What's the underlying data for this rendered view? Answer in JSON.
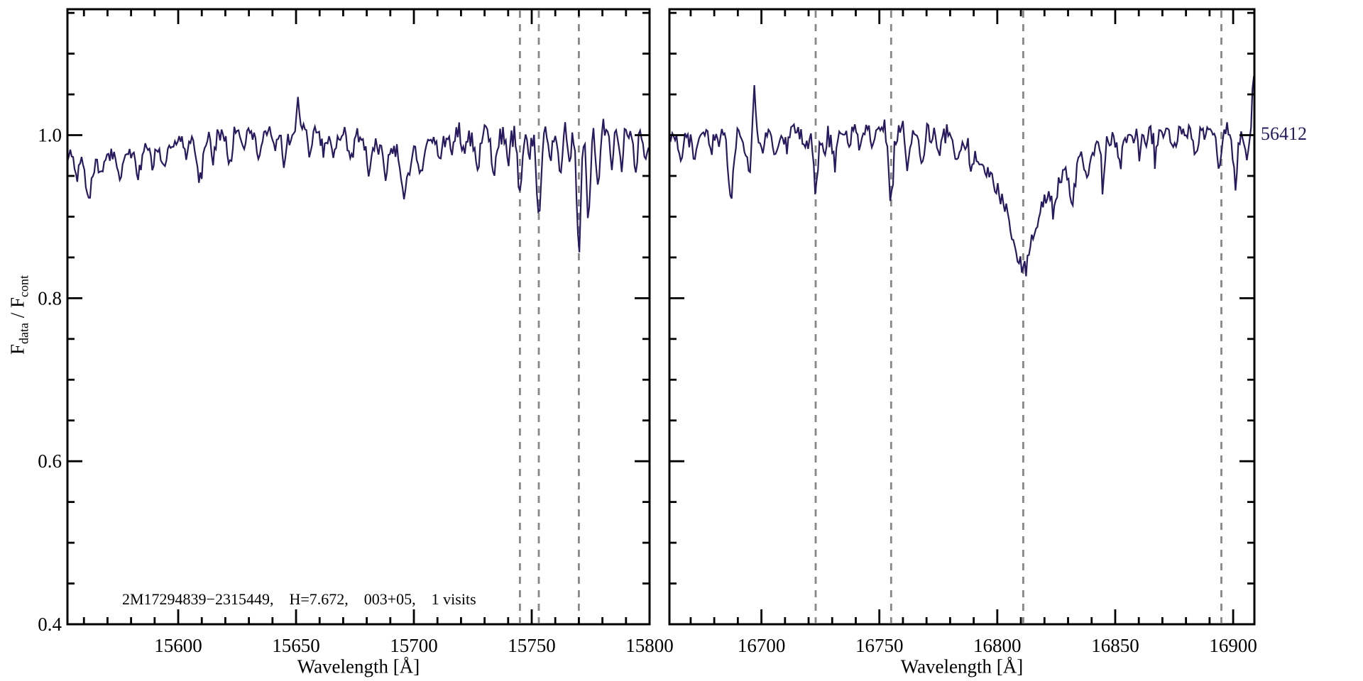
{
  "figure": {
    "background": "#ffffff",
    "line_color": "#281a5e",
    "axis_color": "#000000",
    "dashed_line_color": "#878787",
    "annotation": "2M17294839−2315449,    H=7.672,    003+05,    1 visits",
    "epoch_label": "56412",
    "ylabel": {
      "f1": "F",
      "s1": "data",
      "f2": " / F",
      "s2": "cont"
    }
  },
  "chart_data": [
    {
      "type": "line",
      "name": "left-panel",
      "xlabel": "Wavelength [Å]",
      "ylabel": "Fdata / Fcont",
      "xlim": [
        15553,
        15800
      ],
      "ylim": [
        0.4,
        1.1545
      ],
      "xticks": [
        15600,
        15650,
        15700,
        15750,
        15800
      ],
      "yticks": [
        0.4,
        0.6,
        0.8,
        1.0
      ],
      "ytick_labels": [
        "0.4",
        "0.6",
        "0.8",
        "1.0"
      ],
      "x_minor_step": 10,
      "y_minor_step": 0.05,
      "grid": false,
      "dashed_vlines": [
        15745,
        15753,
        15770
      ],
      "continuum": [
        [
          15553,
          0.972
        ],
        [
          15558,
          0.968
        ],
        [
          15565,
          0.97
        ],
        [
          15572,
          0.973
        ],
        [
          15580,
          0.978
        ],
        [
          15590,
          0.985
        ],
        [
          15600,
          0.992
        ],
        [
          15612,
          1.0
        ],
        [
          15625,
          1.004
        ],
        [
          15640,
          1.005
        ],
        [
          15655,
          1.006
        ],
        [
          15668,
          1.002
        ],
        [
          15678,
          0.995
        ],
        [
          15690,
          0.985
        ],
        [
          15700,
          0.986
        ],
        [
          15710,
          0.995
        ],
        [
          15720,
          1.002
        ],
        [
          15735,
          1.005
        ],
        [
          15760,
          1.006
        ],
        [
          15800,
          1.005
        ]
      ],
      "absorption_lines": [
        [
          15557,
          0.018,
          0.8
        ],
        [
          15562,
          0.05,
          1.1
        ],
        [
          15567,
          0.02,
          0.8
        ],
        [
          15575,
          0.028,
          0.9
        ],
        [
          15583,
          0.038,
          1.0
        ],
        [
          15589,
          0.022,
          0.8
        ],
        [
          15594,
          0.03,
          0.9
        ],
        [
          15603,
          0.022,
          0.8
        ],
        [
          15609,
          0.055,
          1.2
        ],
        [
          15615,
          0.022,
          0.8
        ],
        [
          15622,
          0.037,
          1.0
        ],
        [
          15628,
          0.022,
          0.8
        ],
        [
          15634,
          0.032,
          0.9
        ],
        [
          15641,
          0.02,
          0.8
        ],
        [
          15645,
          0.035,
          0.9
        ],
        [
          15656,
          0.028,
          0.9
        ],
        [
          15662,
          0.022,
          0.8
        ],
        [
          15666,
          0.03,
          0.9
        ],
        [
          15673,
          0.026,
          0.9
        ],
        [
          15681,
          0.032,
          1.0
        ],
        [
          15688,
          0.04,
          1.1
        ],
        [
          15696,
          0.055,
          1.5
        ],
        [
          15703,
          0.038,
          1.2
        ],
        [
          15711,
          0.022,
          0.8
        ],
        [
          15716,
          0.02,
          0.7
        ],
        [
          15721,
          0.028,
          0.8
        ],
        [
          15727,
          0.05,
          0.9
        ],
        [
          15734,
          0.058,
          0.9
        ],
        [
          15740,
          0.035,
          0.7
        ],
        [
          15745,
          0.08,
          0.9
        ],
        [
          15749,
          0.035,
          0.7
        ],
        [
          15753,
          0.105,
          1.0
        ],
        [
          15758,
          0.045,
          0.8
        ],
        [
          15762,
          0.05,
          0.8
        ],
        [
          15766,
          0.045,
          0.7
        ],
        [
          15770,
          0.15,
          0.9
        ],
        [
          15774,
          0.1,
          0.8
        ],
        [
          15778,
          0.07,
          0.8
        ],
        [
          15784,
          0.045,
          0.8
        ],
        [
          15788,
          0.05,
          0.8
        ],
        [
          15794,
          0.045,
          0.8
        ],
        [
          15798,
          0.04,
          0.7
        ]
      ],
      "emission_lines": [
        [
          15651,
          0.035,
          0.7
        ]
      ],
      "noise_sigma": 0.006,
      "sample_step": 0.6
    },
    {
      "type": "line",
      "name": "right-panel",
      "xlabel": "Wavelength [Å]",
      "ylabel": "Fdata / Fcont",
      "xlim": [
        16661,
        16909
      ],
      "ylim": [
        0.4,
        1.1545
      ],
      "xticks": [
        16700,
        16750,
        16800,
        16850,
        16900
      ],
      "yticks": [
        0.4,
        0.6,
        0.8,
        1.0
      ],
      "ytick_labels": [],
      "x_minor_step": 10,
      "y_minor_step": 0.05,
      "grid": false,
      "dashed_vlines": [
        16723,
        16755,
        16811,
        16895
      ],
      "continuum": [
        [
          16661,
          0.998
        ],
        [
          16680,
          1.002
        ],
        [
          16700,
          1.003
        ],
        [
          16720,
          1.004
        ],
        [
          16740,
          1.008
        ],
        [
          16760,
          1.005
        ],
        [
          16780,
          1.006
        ],
        [
          16800,
          1.002
        ],
        [
          16811,
          1.0
        ],
        [
          16825,
          0.995
        ],
        [
          16840,
          0.99
        ],
        [
          16855,
          0.998
        ],
        [
          16870,
          1.002
        ],
        [
          16890,
          1.005
        ],
        [
          16909,
          1.005
        ]
      ],
      "absorption_lines": [
        [
          16666,
          0.03,
          0.9
        ],
        [
          16672,
          0.026,
          0.9
        ],
        [
          16679,
          0.02,
          0.8
        ],
        [
          16687,
          0.08,
          1.1
        ],
        [
          16693,
          0.03,
          0.8
        ],
        [
          16695,
          0.05,
          0.6
        ],
        [
          16700,
          0.02,
          0.8
        ],
        [
          16706,
          0.036,
          1.0
        ],
        [
          16711,
          0.02,
          0.8
        ],
        [
          16719,
          0.022,
          0.8
        ],
        [
          16723,
          0.075,
          0.9
        ],
        [
          16727,
          0.03,
          0.8
        ],
        [
          16731,
          0.04,
          0.9
        ],
        [
          16737,
          0.02,
          0.8
        ],
        [
          16742,
          0.022,
          0.8
        ],
        [
          16747,
          0.02,
          0.8
        ],
        [
          16755,
          0.095,
          0.9
        ],
        [
          16762,
          0.048,
          0.9
        ],
        [
          16768,
          0.042,
          0.9
        ],
        [
          16775,
          0.028,
          0.8
        ],
        [
          16783,
          0.028,
          0.9
        ],
        [
          16789,
          0.025,
          0.8
        ],
        [
          16811,
          0.1,
          13.0
        ],
        [
          16811,
          0.062,
          3.5
        ],
        [
          16824,
          0.03,
          1.0
        ],
        [
          16832,
          0.05,
          1.1
        ],
        [
          16838,
          0.032,
          0.9
        ],
        [
          16845,
          0.065,
          0.5
        ],
        [
          16852,
          0.026,
          0.8
        ],
        [
          16860,
          0.022,
          0.8
        ],
        [
          16867,
          0.026,
          0.8
        ],
        [
          16875,
          0.022,
          0.8
        ],
        [
          16884,
          0.03,
          0.9
        ],
        [
          16894,
          0.042,
          0.9
        ],
        [
          16901,
          0.068,
          0.9
        ],
        [
          16906,
          0.045,
          0.7
        ]
      ],
      "emission_lines": [
        [
          16697,
          0.062,
          0.5
        ],
        [
          16909,
          0.07,
          0.7
        ]
      ],
      "noise_sigma": 0.0065,
      "sample_step": 0.6
    }
  ]
}
